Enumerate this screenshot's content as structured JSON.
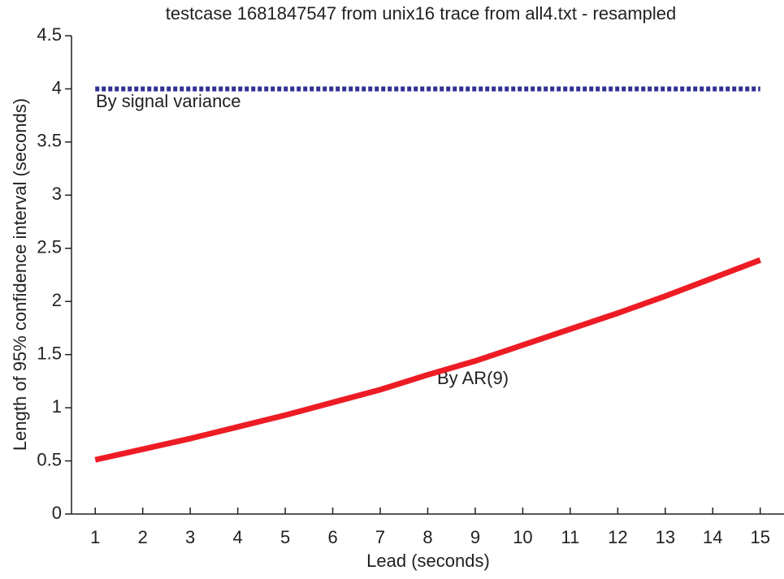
{
  "chart_data": {
    "type": "line",
    "title": "testcase 1681847547 from unix16 trace from all4.txt - resampled",
    "x_label": "Lead (seconds)",
    "y_label": "Length of 95% confidence interval (seconds)",
    "x": [
      1,
      2,
      3,
      4,
      5,
      6,
      7,
      8,
      9,
      10,
      11,
      12,
      13,
      14,
      15
    ],
    "series": [
      {
        "name": "By signal variance",
        "color": "#2e3192",
        "dashed": true,
        "values": [
          4.0,
          4.0,
          4.0,
          4.0,
          4.0,
          4.0,
          4.0,
          4.0,
          4.0,
          4.0,
          4.0,
          4.0,
          4.0,
          4.0,
          4.0
        ]
      },
      {
        "name": "By AR(9)",
        "color": "#ed1c24",
        "dashed": false,
        "values": [
          0.51,
          0.61,
          0.71,
          0.82,
          0.93,
          1.05,
          1.17,
          1.31,
          1.44,
          1.59,
          1.74,
          1.89,
          2.05,
          2.22,
          2.39
        ]
      }
    ],
    "xlim": [
      0.5,
      15.5
    ],
    "xticks": [
      1,
      2,
      3,
      4,
      5,
      6,
      7,
      8,
      9,
      10,
      11,
      12,
      13,
      14,
      15
    ],
    "ylim": [
      0,
      4.5
    ],
    "yticks": [
      0,
      0.5,
      1,
      1.5,
      2,
      2.5,
      3,
      3.5,
      4,
      4.5
    ],
    "grid": false
  }
}
